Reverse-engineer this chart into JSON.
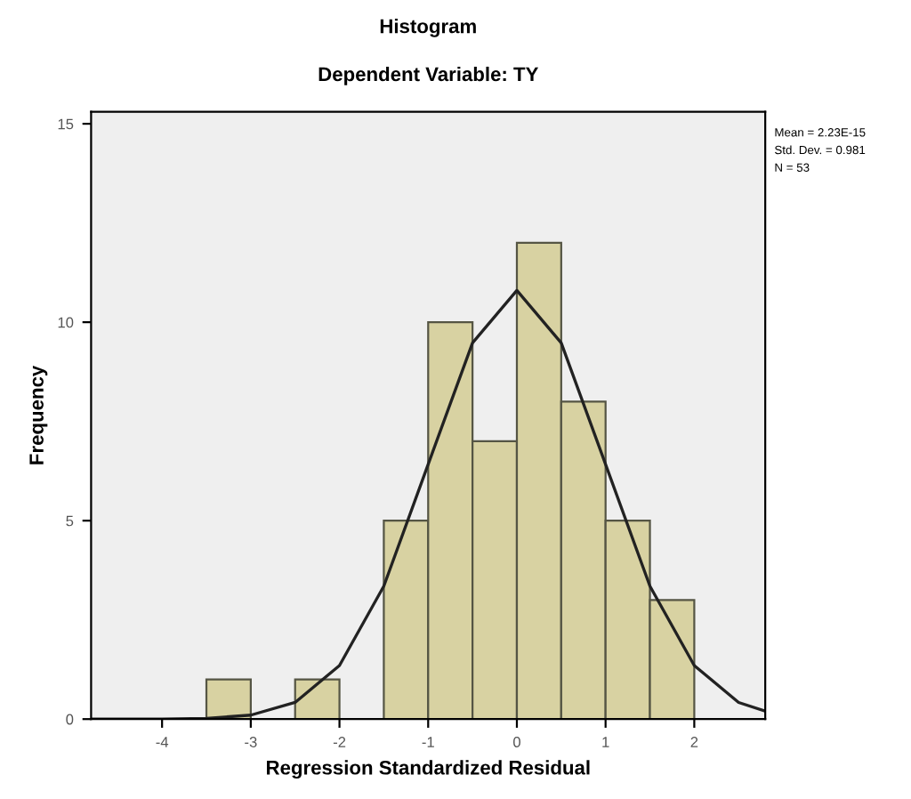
{
  "chart_data": {
    "type": "histogram",
    "title": "Histogram",
    "subtitle": "Dependent Variable: TY",
    "xlabel": "Regression Standardized Residual",
    "ylabel": "Frequency",
    "bins": [
      -3.5,
      -3,
      -2.5,
      -2,
      -1.5,
      -1,
      -0.5,
      0,
      0.5,
      1,
      1.5,
      2
    ],
    "values": [
      1,
      0,
      1,
      0,
      5,
      10,
      7,
      12,
      8,
      5,
      3
    ],
    "color": "#d8d2a2",
    "series": [
      {
        "type": "line",
        "color": "#222222",
        "x": [
          -4.8,
          -4,
          -3.5,
          -3,
          -2.5,
          -2,
          -1.5,
          -1,
          -0.5,
          0,
          0.5,
          1,
          1.5,
          2,
          2.5,
          2.8
        ],
        "values": [
          0,
          0,
          0.02,
          0.1,
          0.42,
          1.35,
          3.35,
          6.42,
          9.48,
          10.8,
          9.48,
          6.42,
          3.35,
          1.35,
          0.42,
          0.2
        ]
      }
    ],
    "xlim": [
      -4.8,
      2.8
    ],
    "ylim": [
      0,
      15.3
    ],
    "xticks": [
      -4,
      -3,
      -2,
      -1,
      0,
      1,
      2
    ],
    "yticks": [
      0,
      5,
      10,
      15
    ],
    "grid": false,
    "legend": false,
    "annotations": [
      "Mean = 2.23E-15",
      "Std. Dev. = 0.981",
      "N = 53"
    ]
  }
}
